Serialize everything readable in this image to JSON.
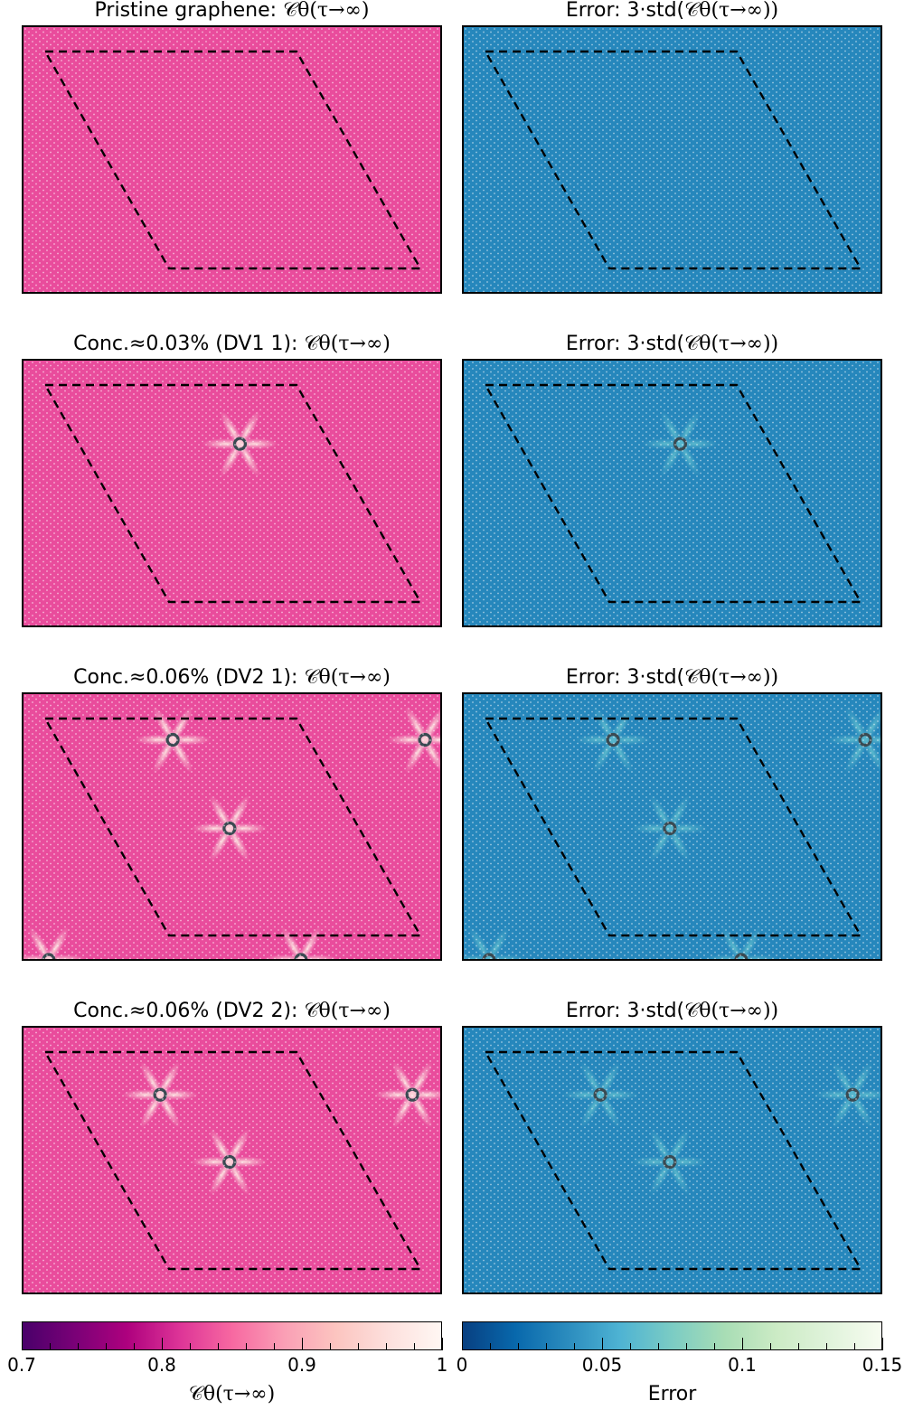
{
  "chart_data": {
    "type": "heatmap",
    "panels": [
      {
        "row": 0,
        "col": 0,
        "title_prefix": "Pristine graphene: ",
        "title_math": "𝒞θ(τ→∞)",
        "colormap": "RdPu",
        "base_value": 0.83,
        "defects": []
      },
      {
        "row": 0,
        "col": 1,
        "title_prefix": "Error: 3·std(",
        "title_math": "𝒞θ(τ→∞))",
        "colormap": "GnBu_r",
        "base_value": 0.035,
        "defects": []
      },
      {
        "row": 1,
        "col": 0,
        "title_prefix": "Conc.≈0.03% (DV1 1): ",
        "title_math": "𝒞θ(τ→∞)",
        "colormap": "RdPu",
        "base_value": 0.83,
        "defects": [
          [
            0.515,
            0.31
          ]
        ]
      },
      {
        "row": 1,
        "col": 1,
        "title_prefix": "Error: 3·std(",
        "title_math": "𝒞θ(τ→∞))",
        "colormap": "GnBu_r",
        "base_value": 0.035,
        "defects": [
          [
            0.515,
            0.31
          ]
        ]
      },
      {
        "row": 2,
        "col": 0,
        "title_prefix": "Conc.≈0.06% (DV2 1): ",
        "title_math": "𝒞θ(τ→∞)",
        "colormap": "RdPu",
        "base_value": 0.83,
        "defects": [
          [
            0.355,
            0.17
          ],
          [
            0.49,
            0.5
          ],
          [
            0.955,
            0.17
          ],
          [
            0.06,
            0.99
          ],
          [
            0.66,
            0.99
          ]
        ]
      },
      {
        "row": 2,
        "col": 1,
        "title_prefix": "Error: 3·std(",
        "title_math": "𝒞θ(τ→∞))",
        "colormap": "GnBu_r",
        "base_value": 0.035,
        "defects": [
          [
            0.355,
            0.17
          ],
          [
            0.49,
            0.5
          ],
          [
            0.955,
            0.17
          ],
          [
            0.06,
            0.99
          ],
          [
            0.66,
            0.99
          ]
        ]
      },
      {
        "row": 3,
        "col": 0,
        "title_prefix": "Conc.≈0.06% (DV2 2): ",
        "title_math": "𝒞θ(τ→∞)",
        "colormap": "RdPu",
        "base_value": 0.83,
        "defects": [
          [
            0.325,
            0.25
          ],
          [
            0.49,
            0.5
          ],
          [
            0.925,
            0.25
          ]
        ]
      },
      {
        "row": 3,
        "col": 1,
        "title_prefix": "Error: 3·std(",
        "title_math": "𝒞θ(τ→∞))",
        "colormap": "GnBu_r",
        "base_value": 0.035,
        "defects": [
          [
            0.325,
            0.25
          ],
          [
            0.49,
            0.5
          ],
          [
            0.925,
            0.25
          ]
        ]
      }
    ],
    "colorbars": [
      {
        "label": "𝒞θ(τ→∞)",
        "range": [
          0.7,
          1.0
        ],
        "ticks": [
          "0.7",
          "0.8",
          "0.9",
          "1"
        ],
        "tick_values": [
          0.7,
          0.8,
          0.9,
          1.0
        ]
      },
      {
        "label": "Error",
        "range": [
          0,
          0.15
        ],
        "ticks": [
          "0",
          "0.05",
          "0.1",
          "0.15"
        ],
        "tick_values": [
          0,
          0.05,
          0.1,
          0.15
        ]
      }
    ],
    "colors": {
      "RdPu": [
        "#49006a",
        "#7a0177",
        "#ae017e",
        "#dd3497",
        "#f768a1",
        "#fa9fb5",
        "#fcc5c0",
        "#fde0dd",
        "#fff7f3"
      ],
      "GnBu_r": [
        "#084081",
        "#0868ac",
        "#2b8cbe",
        "#4eb3d3",
        "#7bccc4",
        "#a8ddb5",
        "#ccebc5",
        "#e0f3db",
        "#f7fcf0"
      ]
    }
  }
}
